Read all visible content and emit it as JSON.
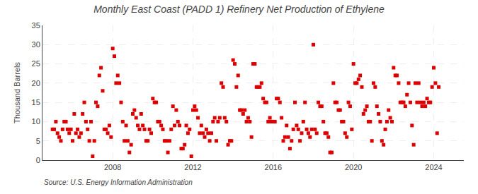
{
  "chart_data": {
    "type": "scatter",
    "title": "Monthly East Coast (PADD 1) Refinery Net Production of Ethylene",
    "ylabel": "Thousand Barrels",
    "annotations": [
      "Source: U.S. Energy Information Administration"
    ],
    "color": "#dd0000",
    "marker": "square",
    "grid": true,
    "xlim": [
      2004.5,
      2025.5
    ],
    "xticks": [
      2008,
      2012,
      2016,
      2020,
      2024
    ],
    "ylim": [
      0,
      35
    ],
    "yticks": [
      0,
      5,
      10,
      15,
      20,
      25,
      30,
      35
    ],
    "x": [
      2005.0,
      2005.083,
      2005.167,
      2005.25,
      2005.333,
      2005.417,
      2005.5,
      2005.583,
      2005.667,
      2005.75,
      2005.833,
      2005.917,
      2006.0,
      2006.083,
      2006.167,
      2006.25,
      2006.333,
      2006.417,
      2006.5,
      2006.583,
      2006.667,
      2006.75,
      2006.833,
      2006.917,
      2007.0,
      2007.083,
      2007.167,
      2007.25,
      2007.333,
      2007.417,
      2007.5,
      2007.583,
      2007.667,
      2007.75,
      2007.833,
      2007.917,
      2008.0,
      2008.083,
      2008.167,
      2008.25,
      2008.333,
      2008.417,
      2008.5,
      2008.583,
      2008.667,
      2008.75,
      2008.833,
      2008.917,
      2009.0,
      2009.083,
      2009.167,
      2009.25,
      2009.333,
      2009.417,
      2009.5,
      2009.583,
      2009.667,
      2009.75,
      2009.833,
      2009.917,
      2010.0,
      2010.083,
      2010.167,
      2010.25,
      2010.333,
      2010.417,
      2010.5,
      2010.583,
      2010.667,
      2010.75,
      2010.833,
      2010.917,
      2011.0,
      2011.083,
      2011.167,
      2011.25,
      2011.333,
      2011.417,
      2011.5,
      2011.583,
      2011.667,
      2011.75,
      2011.833,
      2011.917,
      2012.0,
      2012.083,
      2012.167,
      2012.25,
      2012.333,
      2012.417,
      2012.5,
      2012.583,
      2012.667,
      2012.75,
      2012.833,
      2012.917,
      2013.0,
      2013.083,
      2013.167,
      2013.25,
      2013.333,
      2013.417,
      2013.5,
      2013.583,
      2013.667,
      2013.75,
      2013.833,
      2013.917,
      2014.0,
      2014.083,
      2014.167,
      2014.25,
      2014.333,
      2014.417,
      2014.5,
      2014.583,
      2014.667,
      2014.75,
      2014.833,
      2014.917,
      2015.0,
      2015.083,
      2015.167,
      2015.25,
      2015.333,
      2015.417,
      2015.5,
      2015.583,
      2015.667,
      2015.75,
      2015.833,
      2015.917,
      2016.0,
      2016.083,
      2016.167,
      2016.25,
      2016.333,
      2016.417,
      2016.5,
      2016.583,
      2016.667,
      2016.75,
      2016.833,
      2016.917,
      2017.0,
      2017.083,
      2017.167,
      2017.25,
      2017.333,
      2017.417,
      2017.5,
      2017.583,
      2017.667,
      2017.75,
      2017.833,
      2017.917,
      2018.0,
      2018.083,
      2018.167,
      2018.25,
      2018.333,
      2018.417,
      2018.5,
      2018.583,
      2018.667,
      2018.75,
      2018.833,
      2018.917,
      2019.0,
      2019.083,
      2019.167,
      2019.25,
      2019.333,
      2019.417,
      2019.5,
      2019.583,
      2019.667,
      2019.75,
      2019.833,
      2019.917,
      2020.0,
      2020.083,
      2020.167,
      2020.25,
      2020.333,
      2020.417,
      2020.5,
      2020.583,
      2020.667,
      2020.75,
      2020.833,
      2020.917,
      2021.0,
      2021.083,
      2021.167,
      2021.25,
      2021.333,
      2021.417,
      2021.5,
      2021.583,
      2021.667,
      2021.75,
      2021.833,
      2021.917,
      2022.0,
      2022.083,
      2022.167,
      2022.25,
      2022.333,
      2022.417,
      2022.5,
      2022.583,
      2022.667,
      2022.75,
      2022.833,
      2022.917,
      2023.0,
      2023.083,
      2023.167,
      2023.25,
      2023.333,
      2023.417,
      2023.5,
      2023.583,
      2023.667,
      2023.75,
      2023.833,
      2023.917,
      2024.0,
      2024.083,
      2024.167,
      2024.25
    ],
    "values": [
      8,
      8,
      10,
      7,
      6,
      5,
      8,
      10,
      10,
      8,
      7,
      8,
      5,
      12,
      7,
      8,
      6,
      7,
      12,
      15,
      10,
      8,
      5,
      10,
      1,
      5,
      15,
      14,
      22,
      24,
      18,
      8,
      8,
      7,
      9,
      6,
      29,
      27,
      20,
      22,
      20,
      15,
      10,
      5,
      9,
      5,
      2,
      4,
      12,
      13,
      11,
      9,
      8,
      12,
      9,
      8,
      5,
      5,
      8,
      7,
      16,
      15,
      15,
      10,
      10,
      9,
      8,
      5,
      5,
      2,
      5,
      8,
      14,
      9,
      13,
      10,
      9,
      3,
      3,
      4,
      9,
      7,
      8,
      1,
      13,
      14,
      13,
      11,
      7,
      9,
      7,
      6,
      8,
      7,
      5,
      7,
      10,
      11,
      5,
      10,
      11,
      20,
      19,
      11,
      10,
      4,
      5,
      5,
      26,
      25,
      19,
      22,
      13,
      13,
      12,
      13,
      10,
      11,
      10,
      6,
      25,
      25,
      19,
      19,
      19,
      20,
      16,
      15,
      15,
      10,
      11,
      10,
      10,
      10,
      16,
      16,
      15,
      11,
      5,
      6,
      9,
      6,
      3,
      5,
      8,
      15,
      9,
      8,
      5,
      7,
      10,
      15,
      8,
      7,
      6,
      8,
      30,
      8,
      7,
      15,
      14,
      14,
      10,
      7,
      7,
      6,
      2,
      2,
      20,
      15,
      15,
      13,
      13,
      10,
      10,
      7,
      6,
      15,
      14,
      8,
      25,
      20,
      20,
      21,
      22,
      19,
      12,
      13,
      14,
      10,
      10,
      5,
      20,
      19,
      14,
      12,
      10,
      5,
      4,
      8,
      10,
      13,
      11,
      10,
      24,
      22,
      22,
      20,
      15,
      15,
      15,
      14,
      17,
      20,
      15,
      9,
      4,
      20,
      15,
      20,
      15,
      14,
      15,
      14,
      16,
      15,
      15,
      19,
      24,
      20,
      7,
      19
    ]
  }
}
